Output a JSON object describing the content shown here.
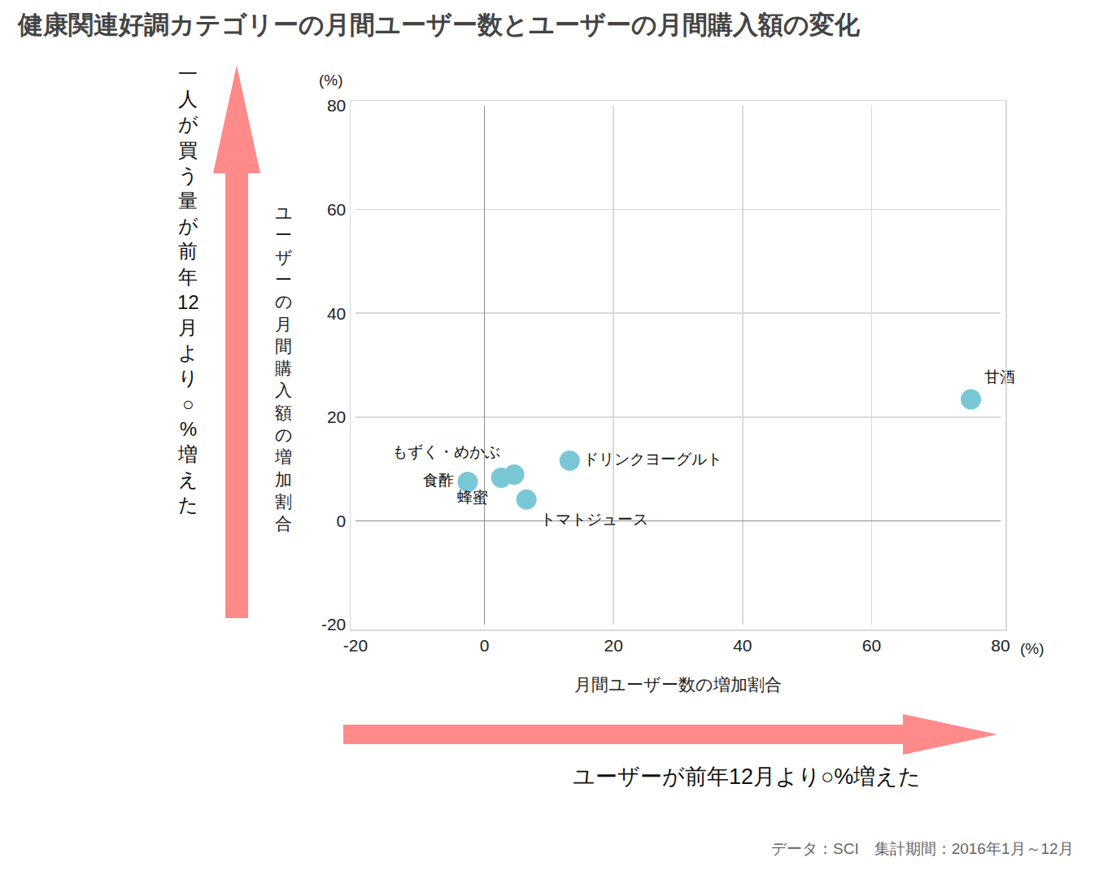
{
  "chart_data": {
    "type": "scatter",
    "title": "健康関連好調カテゴリーの月間ユーザー数とユーザーの月間購入額の変化",
    "x_label": "月間ユーザー数の増加割合",
    "y_label": "ユーザーの月間購入額の増加割合",
    "x_unit": "(%)",
    "y_unit": "(%)",
    "x_arrow_label": "ユーザーが前年12月より○%増えた",
    "y_arrow_label": "一人が買う量が前年12月より○%増えた",
    "source": "データ：SCI　集計期間：2016年1月～12月",
    "labels": [
      "甘酒",
      "ドリンクヨーグルト",
      "もずく・めかぶ",
      "蜂蜜",
      "トマトジュース",
      "食酢"
    ],
    "x": [
      75.4,
      13.2,
      4.6,
      2.6,
      6.5,
      -2.6
    ],
    "values": [
      23.4,
      11.6,
      8.9,
      8.3,
      4.1,
      7.5
    ],
    "color": "#7ac8d6",
    "xlim": [
      -20,
      80
    ],
    "ylim": [
      -20,
      80
    ],
    "xticks": [
      -20,
      0,
      20,
      40,
      60,
      80
    ],
    "yticks": [
      -20,
      0,
      20,
      40,
      60,
      80
    ],
    "grid": true
  }
}
